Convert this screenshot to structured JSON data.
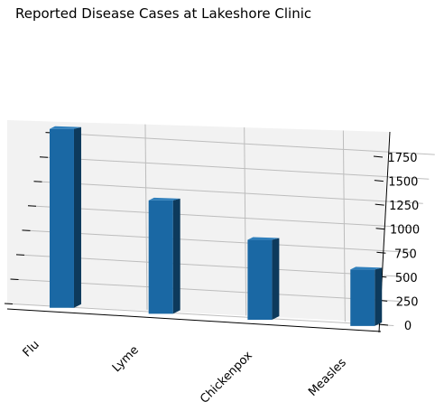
{
  "chart_data": {
    "type": "bar",
    "projection": "3d",
    "title": "Reported Disease Cases at Lakeshore Clinic",
    "categories": [
      "Flu",
      "Lyme",
      "Chickenpox",
      "Measles"
    ],
    "values": [
      1880,
      1195,
      845,
      600
    ],
    "xlabel": "",
    "ylabel": "",
    "zlim": [
      0,
      1950
    ],
    "z_ticks": [
      0,
      250,
      500,
      750,
      1000,
      1250,
      1500,
      1750
    ],
    "grid": true,
    "colors": {
      "bar_front": "#1a68a4",
      "bar_side": "#0d3a5c",
      "bar_top": "#2f7fbc",
      "pane": "#f2f2f2",
      "grid": "#bdbdbd"
    }
  }
}
